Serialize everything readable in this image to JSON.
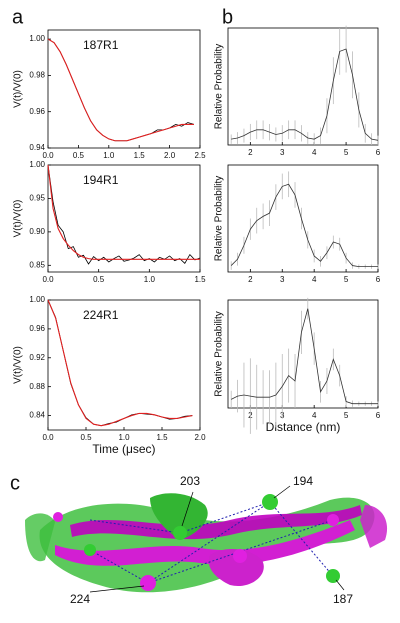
{
  "figure": {
    "panel_labels": [
      "a",
      "b",
      "c"
    ],
    "structure_labels": [
      "203",
      "194",
      "224",
      "187"
    ]
  },
  "chart_data": [
    {
      "type": "line",
      "label": "187R1",
      "ylabel": "V(t)/V(0)",
      "x": [
        0,
        0.1,
        0.2,
        0.3,
        0.4,
        0.5,
        0.6,
        0.7,
        0.8,
        0.9,
        1.0,
        1.1,
        1.2,
        1.3,
        1.4,
        1.5,
        1.6,
        1.7,
        1.8,
        1.9,
        2.0,
        2.1,
        2.2,
        2.3,
        2.4
      ],
      "series": [
        {
          "color": "#000000",
          "values": [
            1.0,
            0.998,
            0.993,
            0.986,
            0.978,
            0.97,
            0.962,
            0.955,
            0.95,
            0.947,
            0.945,
            0.944,
            0.944,
            0.944,
            0.945,
            0.946,
            0.947,
            0.948,
            0.95,
            0.95,
            0.951,
            0.953,
            0.952,
            0.954,
            0.953
          ]
        },
        {
          "color": "#e02020",
          "values": [
            1.0,
            0.998,
            0.993,
            0.986,
            0.978,
            0.97,
            0.962,
            0.955,
            0.95,
            0.947,
            0.945,
            0.944,
            0.944,
            0.944,
            0.945,
            0.946,
            0.947,
            0.948,
            0.949,
            0.95,
            0.951,
            0.952,
            0.953,
            0.953,
            0.953
          ]
        }
      ],
      "xlim": [
        0,
        2.5
      ],
      "xticks": [
        {
          "value": 0,
          "label": "0.0"
        },
        0.5,
        {
          "value": 1,
          "label": "1.0"
        },
        1.5,
        {
          "value": 2,
          "label": "2.0"
        },
        2.5
      ],
      "ylim": [
        0.94,
        1.005
      ],
      "yticks": [
        0.94,
        0.96,
        0.98,
        {
          "value": 1,
          "label": "1.00"
        }
      ]
    },
    {
      "type": "line",
      "label": "194R1",
      "ylabel": "V(t)/V(0)",
      "x": [
        0,
        0.05,
        0.1,
        0.15,
        0.2,
        0.25,
        0.3,
        0.35,
        0.4,
        0.45,
        0.5,
        0.55,
        0.6,
        0.65,
        0.7,
        0.75,
        0.8,
        0.85,
        0.9,
        0.95,
        1.0,
        1.05,
        1.1,
        1.15,
        1.2,
        1.25,
        1.3,
        1.35,
        1.4,
        1.45,
        1.5
      ],
      "series": [
        {
          "color": "#000000",
          "values": [
            1.0,
            0.945,
            0.91,
            0.9,
            0.875,
            0.878,
            0.862,
            0.865,
            0.852,
            0.863,
            0.857,
            0.862,
            0.855,
            0.86,
            0.864,
            0.856,
            0.858,
            0.861,
            0.866,
            0.857,
            0.86,
            0.855,
            0.862,
            0.859,
            0.864,
            0.857,
            0.86,
            0.853,
            0.866,
            0.858,
            0.861
          ]
        },
        {
          "color": "#e02020",
          "values": [
            1.0,
            0.935,
            0.905,
            0.89,
            0.88,
            0.872,
            0.866,
            0.862,
            0.86,
            0.859,
            0.859,
            0.859,
            0.859,
            0.859,
            0.859,
            0.859,
            0.859,
            0.859,
            0.859,
            0.859,
            0.859,
            0.859,
            0.859,
            0.859,
            0.859,
            0.859,
            0.859,
            0.859,
            0.859,
            0.859,
            0.859
          ]
        }
      ],
      "xlim": [
        0,
        1.5
      ],
      "xticks": [
        {
          "value": 0,
          "label": "0.0"
        },
        0.5,
        {
          "value": 1,
          "label": "1.0"
        },
        1.5
      ],
      "ylim": [
        0.84,
        1.0
      ],
      "yticks": [
        0.85,
        {
          "value": 0.9,
          "label": "0.90"
        },
        0.95,
        {
          "value": 1,
          "label": "1.00"
        }
      ]
    },
    {
      "type": "line",
      "label": "224R1",
      "ylabel": "V(t)/V(0)",
      "xlabel": "Time (μsec)",
      "x": [
        0,
        0.1,
        0.2,
        0.3,
        0.4,
        0.5,
        0.6,
        0.7,
        0.8,
        0.9,
        1.0,
        1.1,
        1.2,
        1.3,
        1.4,
        1.5,
        1.6,
        1.7,
        1.8,
        1.9
      ],
      "series": [
        {
          "color": "#000000",
          "values": [
            1.0,
            0.976,
            0.93,
            0.884,
            0.855,
            0.837,
            0.828,
            0.826,
            0.829,
            0.831,
            0.836,
            0.841,
            0.843,
            0.842,
            0.841,
            0.838,
            0.835,
            0.836,
            0.839,
            0.84
          ]
        },
        {
          "color": "#e02020",
          "values": [
            1.0,
            0.975,
            0.93,
            0.885,
            0.855,
            0.836,
            0.828,
            0.826,
            0.828,
            0.832,
            0.836,
            0.84,
            0.843,
            0.843,
            0.841,
            0.838,
            0.836,
            0.836,
            0.838,
            0.84
          ]
        }
      ],
      "xlim": [
        0,
        2.0
      ],
      "xticks": [
        {
          "value": 0,
          "label": "0.0"
        },
        0.5,
        {
          "value": 1,
          "label": "1.0"
        },
        1.5,
        {
          "value": 2,
          "label": "2.0"
        }
      ],
      "ylim": [
        0.82,
        1.0
      ],
      "yticks": [
        0.84,
        0.88,
        0.92,
        0.96,
        {
          "value": 1,
          "label": "1.00"
        }
      ]
    },
    {
      "type": "errorline",
      "ylabel": "Relative Probability",
      "x": [
        1.4,
        1.6,
        1.8,
        2.0,
        2.2,
        2.4,
        2.6,
        2.8,
        3.0,
        3.2,
        3.4,
        3.6,
        3.8,
        4.0,
        4.2,
        4.4,
        4.6,
        4.8,
        5.0,
        5.2,
        5.4,
        5.6,
        5.8,
        6.0
      ],
      "series": [
        {
          "color": "#333333",
          "error_color": "#bbbbbb",
          "values": [
            0.05,
            0.06,
            0.08,
            0.11,
            0.13,
            0.13,
            0.11,
            0.09,
            0.1,
            0.13,
            0.13,
            0.1,
            0.06,
            0.05,
            0.08,
            0.25,
            0.55,
            0.8,
            0.82,
            0.6,
            0.3,
            0.1,
            0.05,
            0.04
          ],
          "errors": [
            0.04,
            0.05,
            0.06,
            0.07,
            0.08,
            0.08,
            0.07,
            0.06,
            0.07,
            0.08,
            0.08,
            0.07,
            0.05,
            0.05,
            0.07,
            0.15,
            0.2,
            0.2,
            0.2,
            0.2,
            0.15,
            0.08,
            0.05,
            0.04
          ]
        }
      ],
      "xlim": [
        1.3,
        6
      ],
      "xticks": [
        2,
        3,
        4,
        5,
        6
      ],
      "ylim": [
        0,
        1
      ]
    },
    {
      "type": "errorline",
      "ylabel": "Relative Probability",
      "x": [
        1.4,
        1.6,
        1.8,
        2.0,
        2.2,
        2.4,
        2.6,
        2.8,
        3.0,
        3.2,
        3.4,
        3.6,
        3.8,
        4.0,
        4.2,
        4.4,
        4.6,
        4.8,
        5.0,
        5.2,
        5.4,
        5.6,
        5.8,
        6.0
      ],
      "series": [
        {
          "color": "#333333",
          "error_color": "#bbbbbb",
          "values": [
            0.06,
            0.12,
            0.25,
            0.4,
            0.48,
            0.52,
            0.55,
            0.7,
            0.8,
            0.82,
            0.72,
            0.5,
            0.3,
            0.15,
            0.1,
            0.18,
            0.28,
            0.26,
            0.13,
            0.06,
            0.05,
            0.05,
            0.05,
            0.05
          ],
          "errors": [
            0.04,
            0.06,
            0.08,
            0.1,
            0.12,
            0.12,
            0.12,
            0.12,
            0.12,
            0.12,
            0.12,
            0.1,
            0.08,
            0.06,
            0.05,
            0.06,
            0.06,
            0.06,
            0.05,
            0.03,
            0.02,
            0.02,
            0.02,
            0.02
          ]
        }
      ],
      "xlim": [
        1.3,
        6
      ],
      "xticks": [
        2,
        3,
        4,
        5,
        6
      ],
      "ylim": [
        0,
        1
      ]
    },
    {
      "type": "errorline",
      "ylabel": "Relative Probability",
      "xlabel": "Distance (nm)",
      "x": [
        1.4,
        1.6,
        1.8,
        2.0,
        2.2,
        2.4,
        2.6,
        2.8,
        3.0,
        3.2,
        3.4,
        3.6,
        3.8,
        4.0,
        4.2,
        4.4,
        4.6,
        4.8,
        5.0,
        5.2,
        5.4,
        5.6,
        5.8,
        6.0
      ],
      "series": [
        {
          "color": "#333333",
          "error_color": "#bbbbbb",
          "values": [
            0.08,
            0.11,
            0.12,
            0.11,
            0.1,
            0.1,
            0.1,
            0.12,
            0.2,
            0.3,
            0.25,
            0.7,
            0.92,
            0.55,
            0.15,
            0.25,
            0.45,
            0.3,
            0.06,
            0.04,
            0.04,
            0.04,
            0.04,
            0.04
          ],
          "errors": [
            0.08,
            0.15,
            0.3,
            0.35,
            0.3,
            0.25,
            0.25,
            0.3,
            0.3,
            0.25,
            0.25,
            0.2,
            0.1,
            0.15,
            0.1,
            0.12,
            0.1,
            0.1,
            0.05,
            0.03,
            0.02,
            0.02,
            0.02,
            0.02
          ]
        }
      ],
      "xlim": [
        1.3,
        6
      ],
      "xticks": [
        2,
        3,
        4,
        5,
        6
      ],
      "ylim": [
        0,
        1
      ]
    }
  ]
}
